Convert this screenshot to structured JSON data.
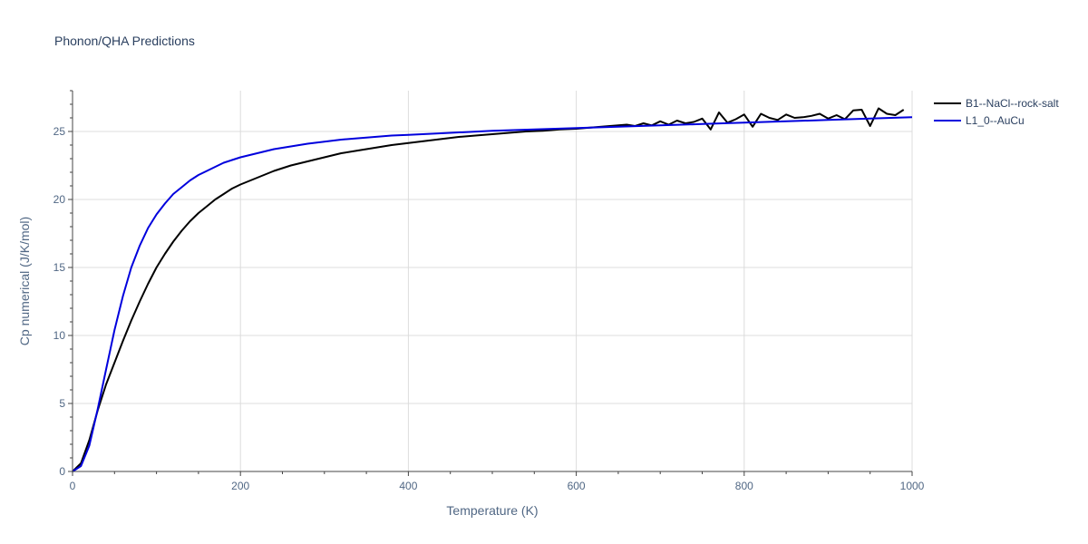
{
  "chart_data": {
    "type": "line",
    "title": "Phonon/QHA Predictions",
    "xlabel": "Temperature (K)",
    "ylabel": "Cp numerical (J/K/mol)",
    "xlim": [
      0,
      1000
    ],
    "ylim": [
      0,
      28
    ],
    "x_ticks": [
      0,
      200,
      400,
      600,
      800,
      1000
    ],
    "x_tick_labels": [
      "0",
      "200",
      "400",
      "600",
      "800",
      "1000"
    ],
    "y_ticks": [
      0,
      5,
      10,
      15,
      20,
      25
    ],
    "y_tick_labels": [
      "0",
      "5",
      "10",
      "15",
      "20",
      "25"
    ],
    "grid": true,
    "legend_position": "top-right",
    "series": [
      {
        "name": "B1--NaCl--rock-salt",
        "color": "#000000",
        "x": [
          0,
          10,
          20,
          30,
          40,
          50,
          60,
          70,
          80,
          90,
          100,
          110,
          120,
          130,
          140,
          150,
          160,
          170,
          180,
          190,
          200,
          220,
          240,
          260,
          280,
          300,
          320,
          340,
          360,
          380,
          400,
          420,
          440,
          460,
          480,
          500,
          520,
          540,
          560,
          580,
          600,
          610,
          620,
          640,
          650,
          660,
          670,
          680,
          690,
          700,
          710,
          720,
          730,
          740,
          750,
          760,
          770,
          780,
          790,
          800,
          810,
          820,
          830,
          840,
          850,
          860,
          870,
          880,
          890,
          900,
          910,
          920,
          930,
          940,
          950,
          960,
          970,
          980,
          990
        ],
        "values": [
          0,
          0.6,
          2.3,
          4.5,
          6.4,
          8.0,
          9.6,
          11.1,
          12.5,
          13.8,
          15.0,
          16.0,
          16.9,
          17.7,
          18.4,
          19.0,
          19.5,
          20.0,
          20.4,
          20.8,
          21.1,
          21.6,
          22.1,
          22.5,
          22.8,
          23.1,
          23.4,
          23.6,
          23.8,
          24.0,
          24.15,
          24.3,
          24.45,
          24.6,
          24.7,
          24.8,
          24.9,
          25.0,
          25.05,
          25.15,
          25.2,
          25.25,
          25.3,
          25.4,
          25.45,
          25.5,
          25.4,
          25.6,
          25.45,
          25.75,
          25.5,
          25.8,
          25.6,
          25.7,
          25.95,
          25.15,
          26.4,
          25.65,
          25.9,
          26.25,
          25.35,
          26.3,
          26.0,
          25.85,
          26.25,
          26.0,
          26.05,
          26.15,
          26.3,
          25.95,
          26.2,
          25.9,
          26.55,
          26.6,
          25.4,
          26.7,
          26.3,
          26.2,
          26.6
        ]
      },
      {
        "name": "L1_0--AuCu",
        "color": "#0000dd",
        "x": [
          0,
          10,
          20,
          30,
          40,
          50,
          60,
          70,
          80,
          90,
          100,
          110,
          120,
          130,
          140,
          150,
          160,
          170,
          180,
          190,
          200,
          220,
          240,
          260,
          280,
          300,
          320,
          340,
          360,
          380,
          400,
          450,
          500,
          550,
          600,
          650,
          700,
          750,
          800,
          850,
          900,
          950,
          1000
        ],
        "values": [
          0,
          0.4,
          1.9,
          4.6,
          7.5,
          10.4,
          12.9,
          15.0,
          16.6,
          17.9,
          18.9,
          19.7,
          20.4,
          20.9,
          21.4,
          21.8,
          22.1,
          22.4,
          22.7,
          22.9,
          23.1,
          23.4,
          23.7,
          23.9,
          24.1,
          24.25,
          24.4,
          24.5,
          24.6,
          24.7,
          24.75,
          24.9,
          25.05,
          25.15,
          25.25,
          25.35,
          25.45,
          25.55,
          25.65,
          25.75,
          25.85,
          25.95,
          26.05
        ]
      }
    ]
  }
}
